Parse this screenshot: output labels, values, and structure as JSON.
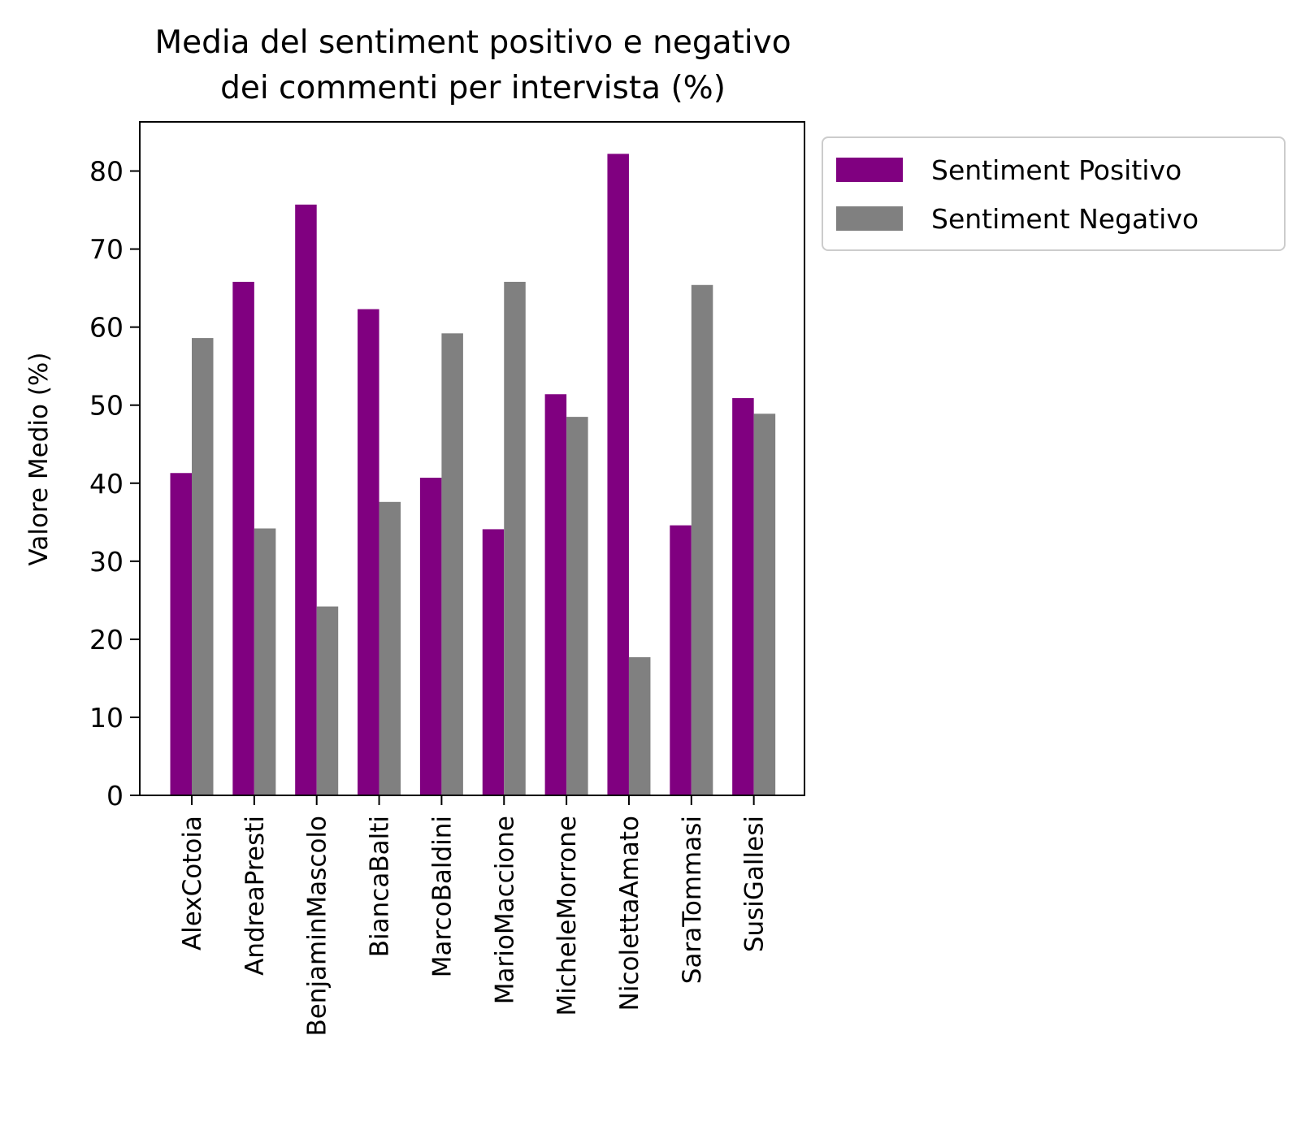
{
  "chart_data": {
    "type": "bar",
    "title_lines": [
      "Media del sentiment positivo e negativo",
      "dei commenti per intervista (%)"
    ],
    "xlabel": "",
    "ylabel": "Valore Medio (%)",
    "ylim": [
      0,
      86.3
    ],
    "yticks": [
      0,
      10,
      20,
      30,
      40,
      50,
      60,
      70,
      80
    ],
    "grid": false,
    "legend_position": "outside-right-top",
    "categories": [
      "AlexCotoia",
      "AndreaPresti",
      "BenjaminMascolo",
      "BiancaBalti",
      "MarcoBaldini",
      "MarioMaccione",
      "MicheleMorrone",
      "NicolettaAmato",
      "SaraTommasi",
      "SusiGallesi"
    ],
    "series": [
      {
        "name": "Sentiment Positivo",
        "color": "#800080",
        "values": [
          41.3,
          65.8,
          75.7,
          62.3,
          40.7,
          34.1,
          51.4,
          82.2,
          34.6,
          50.9
        ]
      },
      {
        "name": "Sentiment Negativo",
        "color": "#808080",
        "values": [
          58.6,
          34.2,
          24.2,
          37.6,
          59.2,
          65.8,
          48.5,
          17.7,
          65.4,
          48.9
        ]
      }
    ]
  }
}
